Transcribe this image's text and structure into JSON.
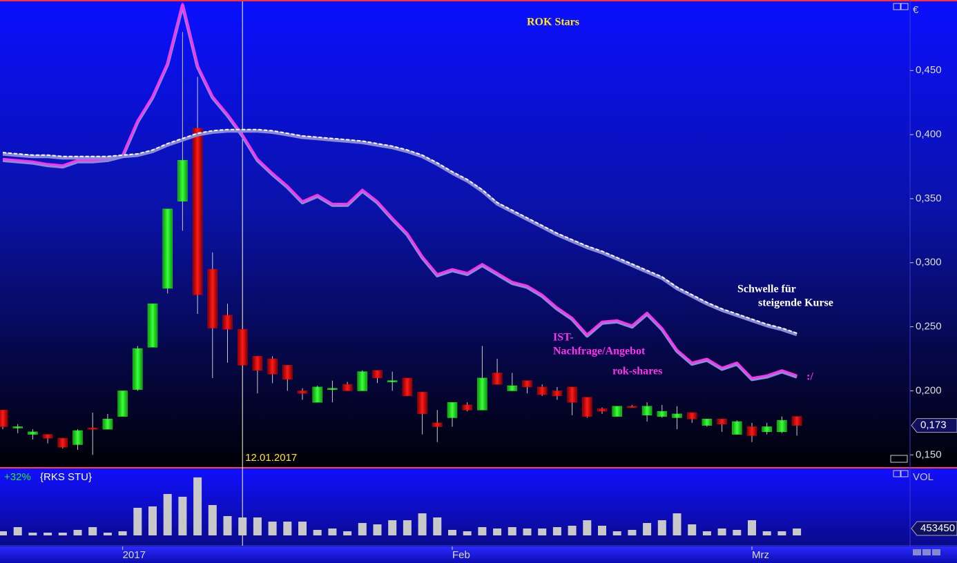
{
  "chart_data": [
    {
      "type": "candlestick",
      "title": "ROK Stars",
      "y_label": "€",
      "categories": [
        null,
        null,
        null,
        null,
        null,
        null,
        null,
        null,
        "2017",
        null,
        null,
        null,
        null,
        null,
        null,
        null,
        null,
        null,
        null,
        null,
        null,
        null,
        null,
        null,
        null,
        null,
        null,
        null,
        null,
        null,
        "Feb",
        null,
        null,
        null,
        null,
        null,
        null,
        null,
        null,
        null,
        null,
        null,
        null,
        null,
        null,
        null,
        null,
        null,
        null,
        null,
        "Mrz",
        null,
        null,
        null
      ],
      "open": [
        0.185,
        0.172,
        0.166,
        0.166,
        0.163,
        0.158,
        0.171,
        0.17,
        0.18,
        0.201,
        0.234,
        0.28,
        0.348,
        0.405,
        0.295,
        0.259,
        0.248,
        0.227,
        0.225,
        0.22,
        0.2,
        0.191,
        0.202,
        0.205,
        0.2,
        0.216,
        0.208,
        0.21,
        0.199,
        0.175,
        0.179,
        0.189,
        0.185,
        0.214,
        0.2,
        0.208,
        0.203,
        0.2,
        0.203,
        0.195,
        0.186,
        0.18,
        0.188,
        0.181,
        0.18,
        0.179,
        0.183,
        0.173,
        0.178,
        0.166,
        0.172,
        0.168,
        0.168,
        0.18
      ],
      "high": [
        0.185,
        0.174,
        0.17,
        0.166,
        0.163,
        0.17,
        0.183,
        0.182,
        0.2,
        0.235,
        0.268,
        0.342,
        0.48,
        0.445,
        0.308,
        0.268,
        0.248,
        0.227,
        0.227,
        0.22,
        0.202,
        0.204,
        0.208,
        0.207,
        0.216,
        0.216,
        0.215,
        0.21,
        0.199,
        0.185,
        0.191,
        0.191,
        0.235,
        0.225,
        0.214,
        0.208,
        0.205,
        0.203,
        0.203,
        0.195,
        0.187,
        0.188,
        0.189,
        0.191,
        0.189,
        0.188,
        0.183,
        0.178,
        0.178,
        0.177,
        0.175,
        0.175,
        0.18,
        0.18
      ],
      "low": [
        0.17,
        0.167,
        0.162,
        0.159,
        0.155,
        0.154,
        0.15,
        0.17,
        0.18,
        0.2,
        0.234,
        0.276,
        0.325,
        0.26,
        0.21,
        0.222,
        0.219,
        0.198,
        0.206,
        0.2,
        0.193,
        0.191,
        0.191,
        0.2,
        0.2,
        0.206,
        0.2,
        0.196,
        0.166,
        0.16,
        0.172,
        0.184,
        0.185,
        0.205,
        0.2,
        0.198,
        0.196,
        0.193,
        0.181,
        0.179,
        0.182,
        0.18,
        0.187,
        0.176,
        0.179,
        0.17,
        0.175,
        0.172,
        0.168,
        0.166,
        0.16,
        0.166,
        0.167,
        0.165
      ],
      "close": [
        0.172,
        0.172,
        0.168,
        0.163,
        0.156,
        0.169,
        0.17,
        0.178,
        0.2,
        0.233,
        0.268,
        0.342,
        0.38,
        0.275,
        0.249,
        0.248,
        0.22,
        0.216,
        0.213,
        0.209,
        0.198,
        0.203,
        0.202,
        0.2,
        0.215,
        0.21,
        0.208,
        0.196,
        0.182,
        0.172,
        0.191,
        0.185,
        0.21,
        0.205,
        0.204,
        0.203,
        0.197,
        0.196,
        0.191,
        0.18,
        0.184,
        0.188,
        0.187,
        0.188,
        0.184,
        0.182,
        0.178,
        0.178,
        0.174,
        0.176,
        0.165,
        0.172,
        0.177,
        0.173
      ],
      "last_price_label": "0,173",
      "up_color": "#22e022",
      "down_color": "#d00000",
      "series": [
        {
          "color": "#ff30ee",
          "dashed": false,
          "values": [
            0.381,
            0.38,
            0.379,
            0.377,
            0.376,
            0.38,
            0.38,
            0.381,
            0.384,
            0.411,
            0.43,
            0.456,
            0.502,
            0.454,
            0.43,
            0.416,
            0.4,
            0.381,
            0.37,
            0.36,
            0.348,
            0.353,
            0.346,
            0.346,
            0.357,
            0.348,
            0.335,
            0.323,
            0.305,
            0.291,
            0.295,
            0.292,
            0.299,
            0.292,
            0.285,
            0.282,
            0.275,
            0.265,
            0.257,
            0.244,
            0.254,
            0.255,
            0.251,
            0.261,
            0.249,
            0.232,
            0.222,
            0.225,
            0.218,
            0.222,
            0.21,
            0.212,
            0.216,
            0.212
          ]
        },
        {
          "color": "#ffffff",
          "dashed": true,
          "values": [
            0.386,
            0.385,
            0.384,
            0.384,
            0.383,
            0.383,
            0.383,
            0.383,
            0.384,
            0.385,
            0.388,
            0.393,
            0.397,
            0.401,
            0.403,
            0.404,
            0.404,
            0.404,
            0.403,
            0.401,
            0.399,
            0.398,
            0.397,
            0.396,
            0.395,
            0.393,
            0.391,
            0.388,
            0.384,
            0.378,
            0.371,
            0.365,
            0.357,
            0.347,
            0.341,
            0.335,
            0.329,
            0.323,
            0.318,
            0.313,
            0.309,
            0.304,
            0.299,
            0.294,
            0.289,
            0.281,
            0.275,
            0.269,
            0.264,
            0.26,
            0.256,
            0.252,
            0.249,
            0.245
          ]
        }
      ],
      "annotations": [
        "Schwelle für",
        "steigende Kurse",
        "IST-",
        "Nachfrage/Angebot",
        "rok-shares",
        ":/"
      ],
      "crosshair_date": "12.01.2017",
      "ylim": [
        0.141,
        0.504
      ],
      "yticks": [
        {
          "value": 0.15,
          "label": "0,150"
        },
        {
          "value": 0.2,
          "label": "0,200"
        },
        {
          "value": 0.25,
          "label": "0,250"
        },
        {
          "value": 0.3,
          "label": "0,300"
        },
        {
          "value": 0.35,
          "label": "0,350"
        },
        {
          "value": 0.4,
          "label": "0,400"
        },
        {
          "value": 0.45,
          "label": "0,450"
        }
      ],
      "grid": false
    },
    {
      "type": "bar",
      "y_label": "VOL",
      "change": "+32%",
      "symbol": "{RKS STU}",
      "color": "#c8c8c8",
      "values": [
        272000,
        544000,
        181000,
        181000,
        181000,
        363000,
        544000,
        181000,
        272000,
        1814000,
        1904000,
        2721000,
        2539000,
        3809000,
        1995000,
        1270000,
        1179000,
        1179000,
        907000,
        907000,
        907000,
        363000,
        453000,
        272000,
        816000,
        726000,
        998000,
        998000,
        1451000,
        1179000,
        363000,
        272000,
        544000,
        453000,
        544000,
        453000,
        453000,
        544000,
        635000,
        998000,
        635000,
        272000,
        363000,
        816000,
        998000,
        1451000,
        726000,
        272000,
        453000,
        363000,
        998000,
        272000,
        272000,
        453450
      ],
      "ylim": [
        0,
        4350000
      ]
    }
  ]
}
